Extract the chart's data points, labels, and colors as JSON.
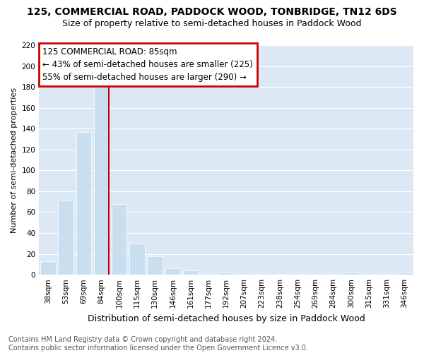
{
  "title": "125, COMMERCIAL ROAD, PADDOCK WOOD, TONBRIDGE, TN12 6DS",
  "subtitle": "Size of property relative to semi-detached houses in Paddock Wood",
  "xlabel": "Distribution of semi-detached houses by size in Paddock Wood",
  "ylabel": "Number of semi-detached properties",
  "footnote": "Contains HM Land Registry data © Crown copyright and database right 2024.\nContains public sector information licensed under the Open Government Licence v3.0.",
  "categories": [
    "38sqm",
    "53sqm",
    "69sqm",
    "84sqm",
    "100sqm",
    "115sqm",
    "130sqm",
    "146sqm",
    "161sqm",
    "177sqm",
    "192sqm",
    "207sqm",
    "223sqm",
    "238sqm",
    "254sqm",
    "269sqm",
    "284sqm",
    "300sqm",
    "315sqm",
    "331sqm",
    "346sqm"
  ],
  "values": [
    13,
    71,
    137,
    180,
    68,
    30,
    18,
    6,
    4,
    0,
    2,
    0,
    0,
    0,
    0,
    0,
    0,
    2,
    0,
    0,
    2
  ],
  "bar_color": "#c9dff0",
  "highlight_line_index": 3,
  "highlight_line_color": "#cc0000",
  "annotation_text": "125 COMMERCIAL ROAD: 85sqm\n← 43% of semi-detached houses are smaller (225)\n55% of semi-detached houses are larger (290) →",
  "annotation_box_color": "#cc0000",
  "ylim": [
    0,
    220
  ],
  "yticks": [
    0,
    20,
    40,
    60,
    80,
    100,
    120,
    140,
    160,
    180,
    200,
    220
  ],
  "fig_background_color": "#ffffff",
  "plot_background_color": "#dce9f5",
  "grid_color": "#ffffff",
  "title_fontsize": 10,
  "subtitle_fontsize": 9,
  "ylabel_fontsize": 8,
  "xlabel_fontsize": 9,
  "tick_fontsize": 7.5,
  "footnote_fontsize": 7,
  "annotation_fontsize": 8.5
}
